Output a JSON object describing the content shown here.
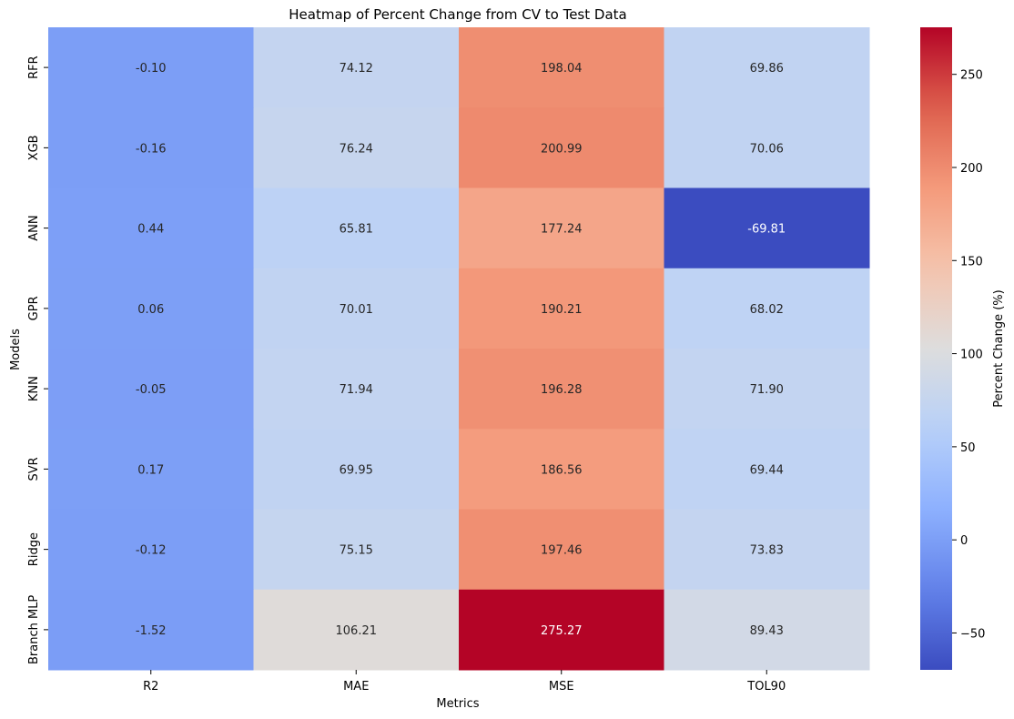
{
  "chart_data": {
    "type": "heatmap",
    "title": "Heatmap of Percent Change from CV to Test Data",
    "xlabel": "Metrics",
    "ylabel": "Models",
    "x_categories": [
      "R2",
      "MAE",
      "MSE",
      "TOL90"
    ],
    "y_categories": [
      "RFR",
      "XGB",
      "ANN",
      "GPR",
      "KNN",
      "SVR",
      "Ridge",
      "Branch MLP"
    ],
    "values": [
      [
        -0.1,
        74.12,
        198.04,
        69.86
      ],
      [
        -0.16,
        76.24,
        200.99,
        70.06
      ],
      [
        0.44,
        65.81,
        177.24,
        -69.81
      ],
      [
        0.06,
        70.01,
        190.21,
        68.02
      ],
      [
        -0.05,
        71.94,
        196.28,
        71.9
      ],
      [
        0.17,
        69.95,
        186.56,
        69.44
      ],
      [
        -0.12,
        75.15,
        197.46,
        73.83
      ],
      [
        -1.52,
        106.21,
        275.27,
        89.43
      ]
    ],
    "colorbar": {
      "label": "Percent Change (%)",
      "colormap": "coolwarm",
      "range": [
        -69.81,
        275.27
      ],
      "ticks": [
        -50,
        0,
        50,
        100,
        150,
        200,
        250
      ]
    },
    "value_format": "2 decimals",
    "grid": false
  }
}
